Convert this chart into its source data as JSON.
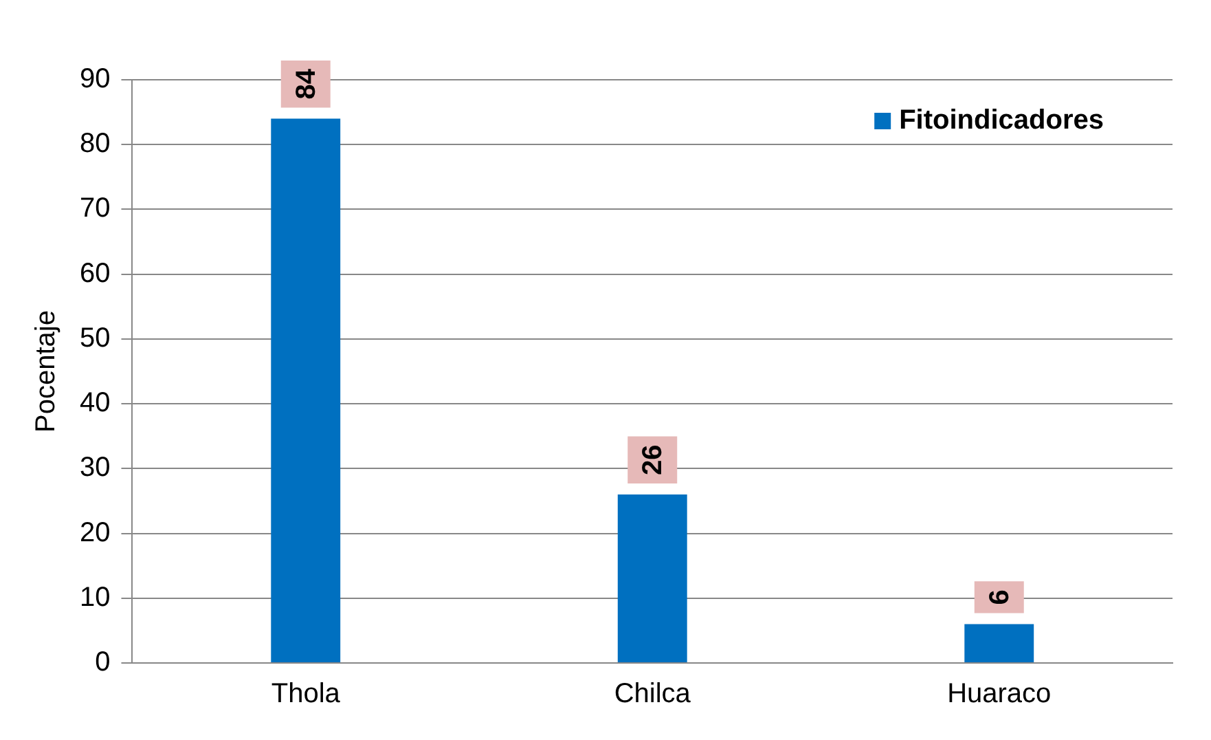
{
  "chart_data": {
    "type": "bar",
    "ylabel": "Pocentaje",
    "categories": [
      "Thola",
      "Chilca",
      "Huaraco"
    ],
    "series": [
      {
        "name": "Fitoindicadores",
        "color": "#0070c0",
        "values": [
          84,
          26,
          6
        ]
      }
    ],
    "ylim": [
      0,
      90
    ],
    "yticks": [
      0,
      10,
      20,
      30,
      40,
      50,
      60,
      70,
      80,
      90
    ],
    "grid": "y",
    "legend": "top right",
    "data_labels": true
  }
}
